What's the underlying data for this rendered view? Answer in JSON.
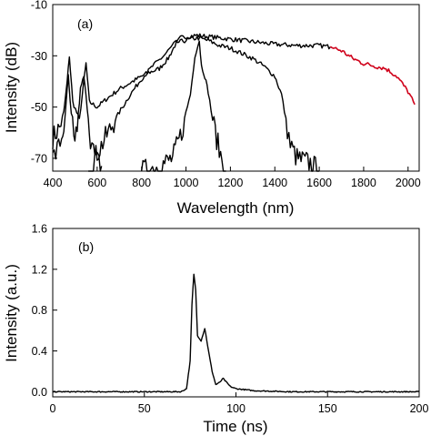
{
  "chart_data": [
    {
      "type": "line",
      "panel_label": "(a)",
      "xlabel": "Wavelength (nm)",
      "ylabel": "Intensity (dB)",
      "xlim": [
        400,
        2050
      ],
      "ylim": [
        -75,
        -10
      ],
      "x_ticks": [
        400,
        600,
        800,
        1000,
        1200,
        1400,
        1600,
        1800,
        2000
      ],
      "y_ticks": [
        -10,
        -30,
        -50,
        -70
      ],
      "grid": false,
      "series": [
        {
          "color": "#000000",
          "style": "noisy",
          "points": [
            [
              400,
              -62
            ],
            [
              430,
              -58
            ],
            [
              450,
              -52
            ],
            [
              465,
              -40
            ],
            [
              475,
              -30
            ],
            [
              490,
              -48
            ],
            [
              520,
              -55
            ],
            [
              540,
              -40
            ],
            [
              550,
              -33
            ],
            [
              565,
              -48
            ],
            [
              600,
              -50
            ],
            [
              640,
              -47
            ],
            [
              700,
              -43
            ],
            [
              760,
              -40
            ],
            [
              820,
              -37
            ],
            [
              880,
              -35
            ],
            [
              920,
              -31
            ],
            [
              950,
              -26
            ],
            [
              975,
              -23
            ],
            [
              1000,
              -22.5
            ],
            [
              1050,
              -22
            ],
            [
              1100,
              -22.5
            ],
            [
              1200,
              -23.5
            ],
            [
              1300,
              -24.5
            ],
            [
              1400,
              -25.5
            ],
            [
              1500,
              -26
            ],
            [
              1600,
              -26
            ],
            [
              1650,
              -26.5
            ]
          ]
        },
        {
          "color": "#000000",
          "style": "noisy",
          "points": [
            [
              560,
              -75
            ],
            [
              600,
              -68
            ],
            [
              650,
              -60
            ],
            [
              700,
              -52
            ],
            [
              750,
              -45
            ],
            [
              800,
              -39
            ],
            [
              850,
              -34
            ],
            [
              900,
              -30
            ],
            [
              950,
              -25
            ],
            [
              1000,
              -24
            ],
            [
              1050,
              -23
            ],
            [
              1100,
              -24
            ],
            [
              1150,
              -26
            ],
            [
              1200,
              -27
            ],
            [
              1250,
              -29
            ],
            [
              1300,
              -31
            ],
            [
              1350,
              -34
            ],
            [
              1400,
              -38
            ],
            [
              1430,
              -45
            ],
            [
              1450,
              -55
            ],
            [
              1470,
              -65
            ],
            [
              1500,
              -70
            ],
            [
              1560,
              -72
            ],
            [
              1600,
              -75
            ]
          ]
        },
        {
          "color": "#000000",
          "style": "noisy",
          "points": [
            [
              800,
              -75
            ],
            [
              880,
              -73
            ],
            [
              940,
              -70
            ],
            [
              980,
              -60
            ],
            [
              1000,
              -52
            ],
            [
              1020,
              -45
            ],
            [
              1040,
              -30
            ],
            [
              1060,
              -24
            ],
            [
              1070,
              -34
            ],
            [
              1085,
              -38
            ],
            [
              1100,
              -44
            ],
            [
              1120,
              -55
            ],
            [
              1150,
              -67
            ],
            [
              1180,
              -75
            ]
          ]
        },
        {
          "color": "#000000",
          "style": "noisy",
          "points": [
            [
              400,
              -70
            ],
            [
              420,
              -67
            ],
            [
              440,
              -62
            ],
            [
              455,
              -55
            ],
            [
              465,
              -43
            ],
            [
              470,
              -38
            ],
            [
              478,
              -48
            ],
            [
              495,
              -63
            ],
            [
              510,
              -58
            ],
            [
              525,
              -43
            ],
            [
              540,
              -38
            ],
            [
              555,
              -50
            ],
            [
              570,
              -62
            ],
            [
              590,
              -70
            ],
            [
              620,
              -73
            ]
          ]
        },
        {
          "color": "#d0021b",
          "style": "noisy",
          "points": [
            [
              1650,
              -26.5
            ],
            [
              1700,
              -28
            ],
            [
              1750,
              -31
            ],
            [
              1800,
              -33
            ],
            [
              1850,
              -34
            ],
            [
              1900,
              -35
            ],
            [
              1950,
              -38
            ],
            [
              2000,
              -44
            ],
            [
              2030,
              -49
            ]
          ]
        }
      ]
    },
    {
      "type": "line",
      "panel_label": "(b)",
      "xlabel": "Time (ns)",
      "ylabel": "Intensity (a.u.)",
      "xlim": [
        0,
        200
      ],
      "ylim": [
        -0.05,
        1.6
      ],
      "x_ticks": [
        0,
        50,
        100,
        150,
        200
      ],
      "y_ticks": [
        "0.0",
        "0.4",
        "0.8",
        "1.2",
        "1.6"
      ],
      "grid": false,
      "series": [
        {
          "color": "#000000",
          "style": "smooth",
          "points": [
            [
              0,
              0
            ],
            [
              50,
              0
            ],
            [
              70,
              0
            ],
            [
              73,
              0.03
            ],
            [
              75,
              0.3
            ],
            [
              76,
              0.85
            ],
            [
              77,
              1.15
            ],
            [
              78,
              1.0
            ],
            [
              79,
              0.55
            ],
            [
              81,
              0.5
            ],
            [
              83,
              0.62
            ],
            [
              85,
              0.4
            ],
            [
              87,
              0.2
            ],
            [
              89,
              0.07
            ],
            [
              91,
              0.09
            ],
            [
              93,
              0.13
            ],
            [
              95,
              0.09
            ],
            [
              97,
              0.05
            ],
            [
              100,
              0.03
            ],
            [
              110,
              0.01
            ],
            [
              130,
              0.0
            ],
            [
              200,
              0.0
            ]
          ]
        }
      ]
    }
  ]
}
